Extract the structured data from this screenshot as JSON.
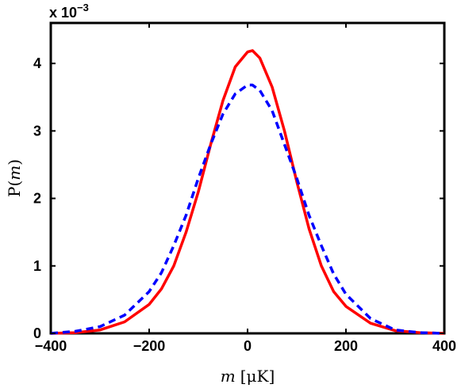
{
  "chart_data": {
    "type": "line",
    "xlabel": {
      "var": "m",
      "unit": "[μK]"
    },
    "ylabel": {
      "pre": "P(",
      "var": "m",
      "post": ")"
    },
    "y_multiplier": {
      "base": "x 10",
      "exp": "−3"
    },
    "xlim": [
      -400,
      400
    ],
    "ylim": [
      0,
      4.6
    ],
    "xticks": [
      -400,
      -200,
      0,
      200,
      400
    ],
    "yticks": [
      0,
      1,
      2,
      3,
      4
    ],
    "xtick_labels": [
      "−400",
      "−200",
      "0",
      "200",
      "400"
    ],
    "ytick_labels": [
      "0",
      "1",
      "2",
      "3",
      "4"
    ],
    "grid": false,
    "series": [
      {
        "color": "#ff0000",
        "style": "solid",
        "x": [
          -400,
          -350,
          -300,
          -250,
          -200,
          -175,
          -150,
          -125,
          -100,
          -75,
          -50,
          -25,
          0,
          10,
          25,
          50,
          75,
          100,
          125,
          150,
          175,
          200,
          250,
          300,
          350,
          400
        ],
        "y": [
          0.0,
          0.01,
          0.05,
          0.17,
          0.43,
          0.66,
          1.0,
          1.5,
          2.1,
          2.8,
          3.45,
          3.95,
          4.17,
          4.19,
          4.08,
          3.65,
          3.0,
          2.25,
          1.55,
          1.0,
          0.62,
          0.4,
          0.15,
          0.04,
          0.01,
          0.0
        ]
      },
      {
        "color": "#0000ff",
        "style": "dashed",
        "x": [
          -400,
          -350,
          -300,
          -250,
          -200,
          -175,
          -150,
          -125,
          -100,
          -75,
          -50,
          -25,
          0,
          10,
          25,
          50,
          75,
          100,
          125,
          150,
          175,
          200,
          250,
          300,
          350,
          400
        ],
        "y": [
          0.0,
          0.03,
          0.1,
          0.27,
          0.62,
          0.9,
          1.3,
          1.75,
          2.3,
          2.8,
          3.25,
          3.55,
          3.68,
          3.68,
          3.6,
          3.3,
          2.8,
          2.3,
          1.75,
          1.3,
          0.88,
          0.58,
          0.22,
          0.05,
          0.01,
          0.0
        ]
      }
    ]
  }
}
